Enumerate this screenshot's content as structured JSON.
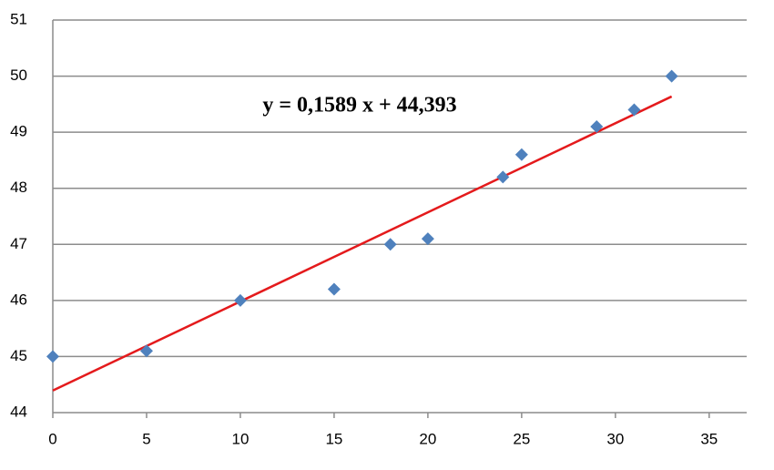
{
  "chart_data": {
    "type": "scatter",
    "annotation": "y = 0,1589 x + 44,393",
    "series": [
      {
        "color": "#4f81bd",
        "x": [
          0,
          5,
          10,
          15,
          18,
          20,
          24,
          25,
          29,
          31,
          33
        ],
        "values": [
          45,
          45.1,
          46,
          46.2,
          47,
          47.1,
          48.2,
          48.6,
          49.1,
          49.4,
          50
        ]
      }
    ],
    "trendline": {
      "slope": 0.1589,
      "intercept": 44.393,
      "color": "#e41a1c"
    },
    "xlim": [
      0,
      37
    ],
    "xticks": [
      0,
      5,
      10,
      15,
      20,
      25,
      30,
      35
    ],
    "ylim": [
      44,
      51
    ],
    "yticks": [
      44,
      45,
      46,
      47,
      48,
      49,
      50,
      51
    ],
    "grid": true
  }
}
